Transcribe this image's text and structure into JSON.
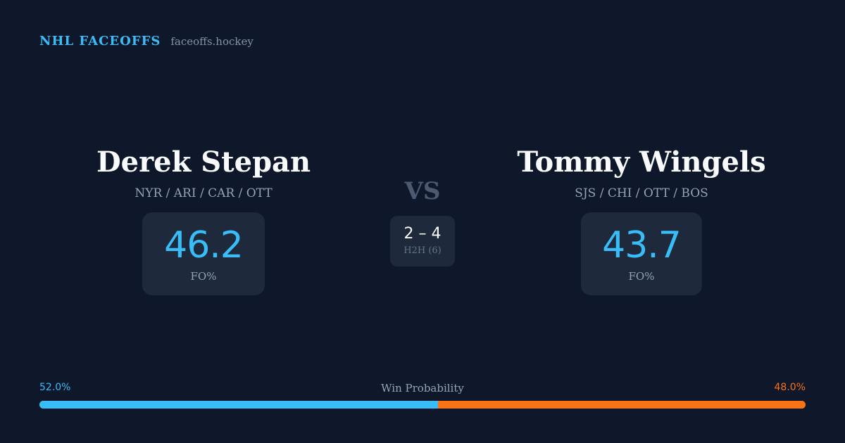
{
  "brand": {
    "name": "NHL FACEOFFS",
    "domain": "faceoffs.hockey"
  },
  "player_left": {
    "name": "Derek Stepan",
    "teams": "NYR / ARI / CAR / OTT",
    "stat_value": "46.2",
    "stat_label": "FO%"
  },
  "player_right": {
    "name": "Tommy Wingels",
    "teams": "SJS / CHI / OTT / BOS",
    "stat_value": "43.7",
    "stat_label": "FO%"
  },
  "versus": {
    "label": "VS",
    "h2h_score": "2 – 4",
    "h2h_label": "H2H (6)"
  },
  "win_probability": {
    "title": "Win Probability",
    "left_label": "52.0%",
    "right_label": "48.0%",
    "left_fraction": 0.52,
    "left_color": "#38bdf8",
    "right_color": "#f97316"
  }
}
